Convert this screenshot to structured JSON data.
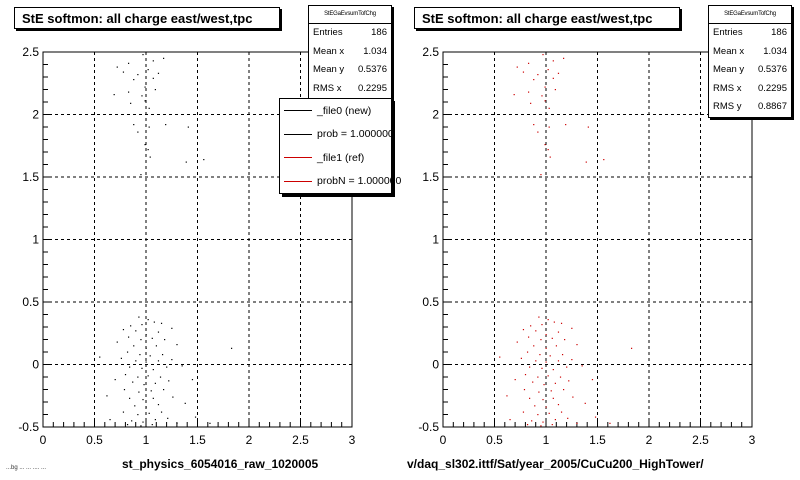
{
  "canvas": {
    "background": "#ffffff",
    "ref_color": "#cc0000",
    "new_color": "#000000"
  },
  "panels": [
    {
      "title": "StE softmon: all charge east/west,tpc",
      "stats": {
        "name": "StEGaEvsumTofChg",
        "rows": [
          {
            "label": "Entries",
            "value": "186"
          },
          {
            "label": "Mean x",
            "value": "1.034"
          },
          {
            "label": "Mean y",
            "value": "0.5376"
          },
          {
            "label": "RMS x",
            "value": "0.2295"
          }
        ]
      },
      "legend": {
        "entries": [
          {
            "label": "_file0 (new)",
            "color": "#000000"
          },
          {
            "label": "prob = 1.000000",
            "color": "#000000"
          },
          {
            "label": "_file1 (ref)",
            "color": "#cc0000"
          },
          {
            "label": "probN = 1.000000",
            "color": "#cc0000"
          }
        ]
      },
      "xlabel": "st_physics_6054016_raw_1020005"
    },
    {
      "title": "StE softmon: all charge east/west,tpc",
      "stats": {
        "name": "StEGaEvsumTofChg",
        "rows": [
          {
            "label": "Entries",
            "value": "186"
          },
          {
            "label": "Mean x",
            "value": "1.034"
          },
          {
            "label": "Mean y",
            "value": "0.5376"
          },
          {
            "label": "RMS x",
            "value": "0.2295"
          },
          {
            "label": "RMS y",
            "value": "0.8867"
          }
        ]
      },
      "xlabel": "v/daq_sl302.ittf/Sat/year_2005/CuCu200_HighTower/"
    }
  ],
  "footer_note": "...bg ... ... .... ...",
  "chart_data": [
    {
      "type": "scatter",
      "title": "StE softmon: all charge east/west,tpc",
      "xlabel": "st_physics_6054016_raw_1020005",
      "ylabel": "",
      "xlim": [
        0,
        3
      ],
      "ylim": [
        -0.5,
        2.5
      ],
      "xticks": [
        "0",
        "0.5",
        "1",
        "1.5",
        "2",
        "2.5",
        "3"
      ],
      "yticks": [
        "-0.5",
        "0",
        "0.5",
        "1",
        "1.5",
        "2",
        "2.5"
      ],
      "grid": true,
      "legend_position": "top-right",
      "series": [
        {
          "name": "_file0 (new)",
          "color": "#000000",
          "points": [
            [
              0.72,
              2.38
            ],
            [
              0.83,
              2.41
            ],
            [
              0.97,
              2.48
            ],
            [
              1.07,
              2.43
            ],
            [
              1.17,
              2.45
            ],
            [
              0.78,
              2.34
            ],
            [
              0.92,
              2.32
            ],
            [
              1.02,
              2.36
            ],
            [
              1.12,
              2.33
            ],
            [
              0.88,
              2.28
            ],
            [
              1.07,
              2.29
            ],
            [
              0.99,
              2.22
            ],
            [
              0.83,
              2.18
            ],
            [
              0.96,
              2.15
            ],
            [
              0.69,
              2.16
            ],
            [
              1.09,
              2.2
            ],
            [
              0.85,
              2.09
            ],
            [
              0.99,
              2.11
            ],
            [
              1.03,
              2.05
            ],
            [
              0.88,
              1.92
            ],
            [
              1.19,
              1.92
            ],
            [
              1.03,
              1.9
            ],
            [
              0.92,
              1.86
            ],
            [
              1.41,
              1.9
            ],
            [
              0.99,
              1.76
            ],
            [
              1.02,
              1.72
            ],
            [
              1.39,
              1.62
            ],
            [
              1.04,
              1.66
            ],
            [
              0.95,
              1.52
            ],
            [
              1.56,
              1.64
            ],
            [
              0.93,
              0.38
            ],
            [
              1.02,
              0.36
            ],
            [
              1.08,
              0.34
            ],
            [
              0.85,
              0.31
            ],
            [
              0.96,
              0.32
            ],
            [
              1.15,
              0.33
            ],
            [
              0.78,
              0.28
            ],
            [
              0.9,
              0.27
            ],
            [
              1.0,
              0.24
            ],
            [
              1.12,
              0.26
            ],
            [
              1.25,
              0.29
            ],
            [
              0.83,
              0.22
            ],
            [
              0.95,
              0.2
            ],
            [
              1.06,
              0.21
            ],
            [
              1.18,
              0.2
            ],
            [
              0.72,
              0.18
            ],
            [
              0.88,
              0.15
            ],
            [
              1.0,
              0.13
            ],
            [
              1.1,
              0.15
            ],
            [
              1.3,
              0.16
            ],
            [
              0.82,
              0.1
            ],
            [
              0.94,
              0.08
            ],
            [
              1.04,
              0.07
            ],
            [
              1.16,
              0.08
            ],
            [
              1.83,
              0.13
            ],
            [
              0.76,
              0.05
            ],
            [
              0.9,
              0.03
            ],
            [
              1.0,
              0.02
            ],
            [
              1.12,
              0.03
            ],
            [
              1.25,
              0.04
            ],
            [
              0.55,
              0.06
            ],
            [
              0.84,
              -0.02
            ],
            [
              0.96,
              -0.03
            ],
            [
              1.07,
              -0.04
            ],
            [
              1.2,
              -0.02
            ],
            [
              1.35,
              -0.01
            ],
            [
              0.8,
              -0.08
            ],
            [
              0.92,
              -0.1
            ],
            [
              1.02,
              -0.09
            ],
            [
              1.14,
              -0.1
            ],
            [
              0.7,
              -0.12
            ],
            [
              0.87,
              -0.14
            ],
            [
              0.98,
              -0.16
            ],
            [
              1.09,
              -0.15
            ],
            [
              1.22,
              -0.13
            ],
            [
              1.45,
              -0.12
            ],
            [
              0.79,
              -0.2
            ],
            [
              0.93,
              -0.22
            ],
            [
              1.05,
              -0.21
            ],
            [
              1.17,
              -0.2
            ],
            [
              0.84,
              -0.27
            ],
            [
              0.97,
              -0.28
            ],
            [
              1.07,
              -0.27
            ],
            [
              1.26,
              -0.26
            ],
            [
              0.62,
              -0.25
            ],
            [
              0.89,
              -0.33
            ],
            [
              1.0,
              -0.34
            ],
            [
              1.12,
              -0.32
            ],
            [
              1.38,
              -0.31
            ],
            [
              0.78,
              -0.38
            ],
            [
              0.92,
              -0.4
            ],
            [
              1.03,
              -0.39
            ],
            [
              1.15,
              -0.38
            ],
            [
              0.65,
              -0.44
            ],
            [
              0.86,
              -0.45
            ],
            [
              0.97,
              -0.46
            ],
            [
              1.09,
              -0.44
            ],
            [
              1.21,
              -0.43
            ],
            [
              1.48,
              -0.42
            ],
            [
              0.82,
              -0.48
            ],
            [
              0.95,
              -0.49
            ],
            [
              1.06,
              -0.48
            ],
            [
              1.3,
              -0.47
            ],
            [
              1.62,
              -0.47
            ]
          ]
        }
      ]
    },
    {
      "type": "scatter",
      "title": "StE softmon: all charge east/west,tpc",
      "xlabel": "v/daq_sl302.ittf/Sat/year_2005/CuCu200_HighTower/",
      "ylabel": "",
      "xlim": [
        0,
        3
      ],
      "ylim": [
        -0.5,
        2.5
      ],
      "xticks": [
        "0",
        "0.5",
        "1",
        "1.5",
        "2",
        "2.5",
        "3"
      ],
      "yticks": [
        "-0.5",
        "0",
        "0.5",
        "1",
        "1.5",
        "2",
        "2.5"
      ],
      "grid": true,
      "series": [
        {
          "name": "_file1 (ref)",
          "color": "#cc0000",
          "points": [
            [
              0.72,
              2.38
            ],
            [
              0.83,
              2.41
            ],
            [
              0.97,
              2.48
            ],
            [
              1.07,
              2.43
            ],
            [
              1.17,
              2.45
            ],
            [
              0.78,
              2.34
            ],
            [
              0.92,
              2.32
            ],
            [
              1.02,
              2.36
            ],
            [
              1.12,
              2.33
            ],
            [
              0.88,
              2.28
            ],
            [
              1.07,
              2.29
            ],
            [
              0.99,
              2.22
            ],
            [
              0.83,
              2.18
            ],
            [
              0.96,
              2.15
            ],
            [
              0.69,
              2.16
            ],
            [
              1.09,
              2.2
            ],
            [
              0.85,
              2.09
            ],
            [
              0.99,
              2.11
            ],
            [
              1.03,
              2.05
            ],
            [
              0.88,
              1.92
            ],
            [
              1.19,
              1.92
            ],
            [
              1.03,
              1.9
            ],
            [
              0.92,
              1.86
            ],
            [
              1.41,
              1.9
            ],
            [
              0.99,
              1.76
            ],
            [
              1.02,
              1.72
            ],
            [
              1.39,
              1.62
            ],
            [
              1.04,
              1.66
            ],
            [
              0.95,
              1.52
            ],
            [
              1.56,
              1.64
            ],
            [
              0.93,
              0.38
            ],
            [
              1.02,
              0.36
            ],
            [
              1.08,
              0.34
            ],
            [
              0.85,
              0.31
            ],
            [
              0.96,
              0.32
            ],
            [
              1.15,
              0.33
            ],
            [
              0.78,
              0.28
            ],
            [
              0.9,
              0.27
            ],
            [
              1.0,
              0.24
            ],
            [
              1.12,
              0.26
            ],
            [
              1.25,
              0.29
            ],
            [
              0.83,
              0.22
            ],
            [
              0.95,
              0.2
            ],
            [
              1.06,
              0.21
            ],
            [
              1.18,
              0.2
            ],
            [
              0.72,
              0.18
            ],
            [
              0.88,
              0.15
            ],
            [
              1.0,
              0.13
            ],
            [
              1.1,
              0.15
            ],
            [
              1.3,
              0.16
            ],
            [
              0.82,
              0.1
            ],
            [
              0.94,
              0.08
            ],
            [
              1.04,
              0.07
            ],
            [
              1.16,
              0.08
            ],
            [
              1.83,
              0.13
            ],
            [
              0.76,
              0.05
            ],
            [
              0.9,
              0.03
            ],
            [
              1.0,
              0.02
            ],
            [
              1.12,
              0.03
            ],
            [
              1.25,
              0.04
            ],
            [
              0.55,
              0.06
            ],
            [
              0.84,
              -0.02
            ],
            [
              0.96,
              -0.03
            ],
            [
              1.07,
              -0.04
            ],
            [
              1.2,
              -0.02
            ],
            [
              1.35,
              -0.01
            ],
            [
              0.8,
              -0.08
            ],
            [
              0.92,
              -0.1
            ],
            [
              1.02,
              -0.09
            ],
            [
              1.14,
              -0.1
            ],
            [
              0.7,
              -0.12
            ],
            [
              0.87,
              -0.14
            ],
            [
              0.98,
              -0.16
            ],
            [
              1.09,
              -0.15
            ],
            [
              1.22,
              -0.13
            ],
            [
              1.45,
              -0.12
            ],
            [
              0.79,
              -0.2
            ],
            [
              0.93,
              -0.22
            ],
            [
              1.05,
              -0.21
            ],
            [
              1.17,
              -0.2
            ],
            [
              0.84,
              -0.27
            ],
            [
              0.97,
              -0.28
            ],
            [
              1.07,
              -0.27
            ],
            [
              1.26,
              -0.26
            ],
            [
              0.62,
              -0.25
            ],
            [
              0.89,
              -0.33
            ],
            [
              1.0,
              -0.34
            ],
            [
              1.12,
              -0.32
            ],
            [
              1.38,
              -0.31
            ],
            [
              0.78,
              -0.38
            ],
            [
              0.92,
              -0.4
            ],
            [
              1.03,
              -0.39
            ],
            [
              1.15,
              -0.38
            ],
            [
              0.65,
              -0.44
            ],
            [
              0.86,
              -0.45
            ],
            [
              0.97,
              -0.46
            ],
            [
              1.09,
              -0.44
            ],
            [
              1.21,
              -0.43
            ],
            [
              1.48,
              -0.42
            ],
            [
              0.82,
              -0.48
            ],
            [
              0.95,
              -0.49
            ],
            [
              1.06,
              -0.48
            ],
            [
              1.3,
              -0.47
            ],
            [
              1.62,
              -0.47
            ]
          ]
        }
      ]
    }
  ]
}
